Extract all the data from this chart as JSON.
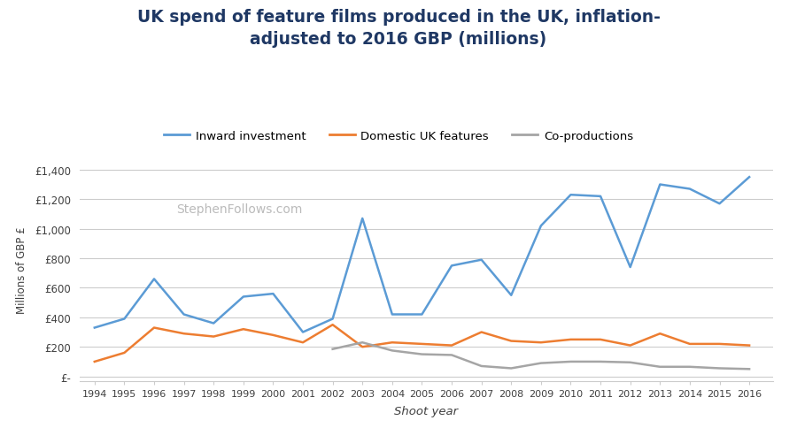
{
  "years": [
    1994,
    1995,
    1996,
    1997,
    1998,
    1999,
    2000,
    2001,
    2002,
    2003,
    2004,
    2005,
    2006,
    2007,
    2008,
    2009,
    2010,
    2011,
    2012,
    2013,
    2014,
    2015,
    2016
  ],
  "inward_investment": [
    330,
    390,
    660,
    420,
    360,
    540,
    560,
    300,
    390,
    1070,
    420,
    420,
    750,
    790,
    550,
    1020,
    1230,
    1220,
    740,
    1300,
    1270,
    1170,
    1350
  ],
  "domestic_uk": [
    100,
    160,
    330,
    290,
    270,
    320,
    280,
    230,
    350,
    200,
    230,
    220,
    210,
    300,
    240,
    230,
    250,
    250,
    210,
    290,
    220,
    220,
    210
  ],
  "co_productions": [
    null,
    null,
    null,
    null,
    null,
    null,
    null,
    null,
    185,
    230,
    175,
    150,
    145,
    70,
    55,
    90,
    100,
    100,
    95,
    65,
    65,
    55,
    50
  ],
  "title": "UK spend of feature films produced in the UK, inflation-\nadjusted to 2016 GBP (millions)",
  "xlabel": "Shoot year",
  "ylabel": "Millions of GBP £",
  "legend_labels": [
    "Inward investment",
    "Domestic UK features",
    "Co-productions"
  ],
  "inward_color": "#5B9BD5",
  "domestic_color": "#ED7D31",
  "coproductions_color": "#A5A5A5",
  "watermark": "StephenFollows.com",
  "ytick_labels": [
    "£-",
    "£200",
    "£400",
    "£600",
    "£800",
    "£1,000",
    "£1,200",
    "£1,400"
  ],
  "ytick_values": [
    0,
    200,
    400,
    600,
    800,
    1000,
    1200,
    1400
  ],
  "ylim": [
    -30,
    1480
  ],
  "xlim": [
    1993.5,
    2016.8
  ],
  "background_color": "#ffffff",
  "title_color": "#1F3864",
  "grid_color": "#CCCCCC",
  "axis_label_color": "#404040",
  "tick_label_color": "#404040"
}
